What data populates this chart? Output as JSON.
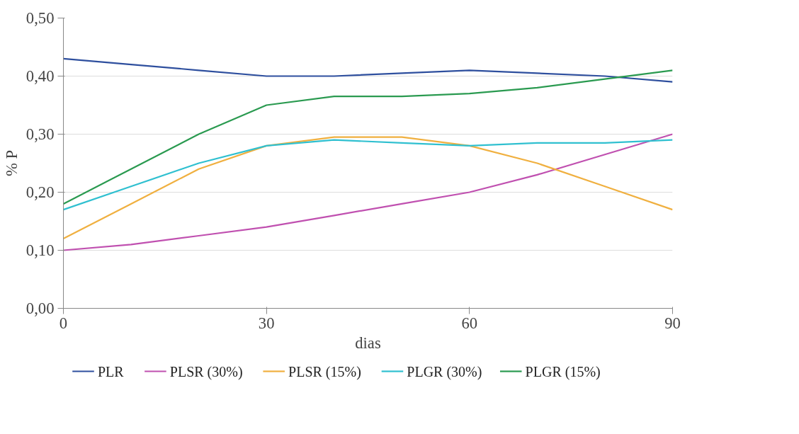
{
  "chart_data": {
    "type": "line",
    "xlabel": "dias",
    "ylabel": "% P",
    "x": [
      0,
      10,
      20,
      30,
      40,
      50,
      60,
      70,
      80,
      90
    ],
    "series": [
      {
        "name": "PLR",
        "color": "#2e4f9e",
        "values": [
          0.43,
          0.42,
          0.41,
          0.4,
          0.4,
          0.405,
          0.41,
          0.405,
          0.4,
          0.39
        ]
      },
      {
        "name": "PLSR (30%)",
        "color": "#c050b0",
        "values": [
          0.1,
          0.11,
          0.125,
          0.14,
          0.16,
          0.18,
          0.2,
          0.23,
          0.265,
          0.3
        ]
      },
      {
        "name": "PLSR (15%)",
        "color": "#f0b040",
        "values": [
          0.12,
          0.18,
          0.24,
          0.28,
          0.295,
          0.295,
          0.28,
          0.25,
          0.21,
          0.17
        ]
      },
      {
        "name": "PLGR (30%)",
        "color": "#30c0d0",
        "values": [
          0.17,
          0.21,
          0.25,
          0.28,
          0.29,
          0.285,
          0.28,
          0.285,
          0.285,
          0.29
        ]
      },
      {
        "name": "PLGR (15%)",
        "color": "#2a9a50",
        "values": [
          0.18,
          0.24,
          0.3,
          0.35,
          0.365,
          0.365,
          0.37,
          0.38,
          0.395,
          0.41
        ]
      }
    ],
    "xlim": [
      0,
      90
    ],
    "xticks": [
      0,
      30,
      60,
      90
    ],
    "ylim": [
      0,
      0.5
    ],
    "yticks": [
      {
        "value": 0,
        "label": "0,00"
      },
      {
        "value": 0.1,
        "label": "0,10"
      },
      {
        "value": 0.2,
        "label": "0,20"
      },
      {
        "value": 0.3,
        "label": "0,30"
      },
      {
        "value": 0.4,
        "label": "0,40"
      },
      {
        "value": 0.5,
        "label": "0,50"
      }
    ],
    "grid": "y",
    "legend": "bottom",
    "marker": "none",
    "line_style": "solid"
  }
}
